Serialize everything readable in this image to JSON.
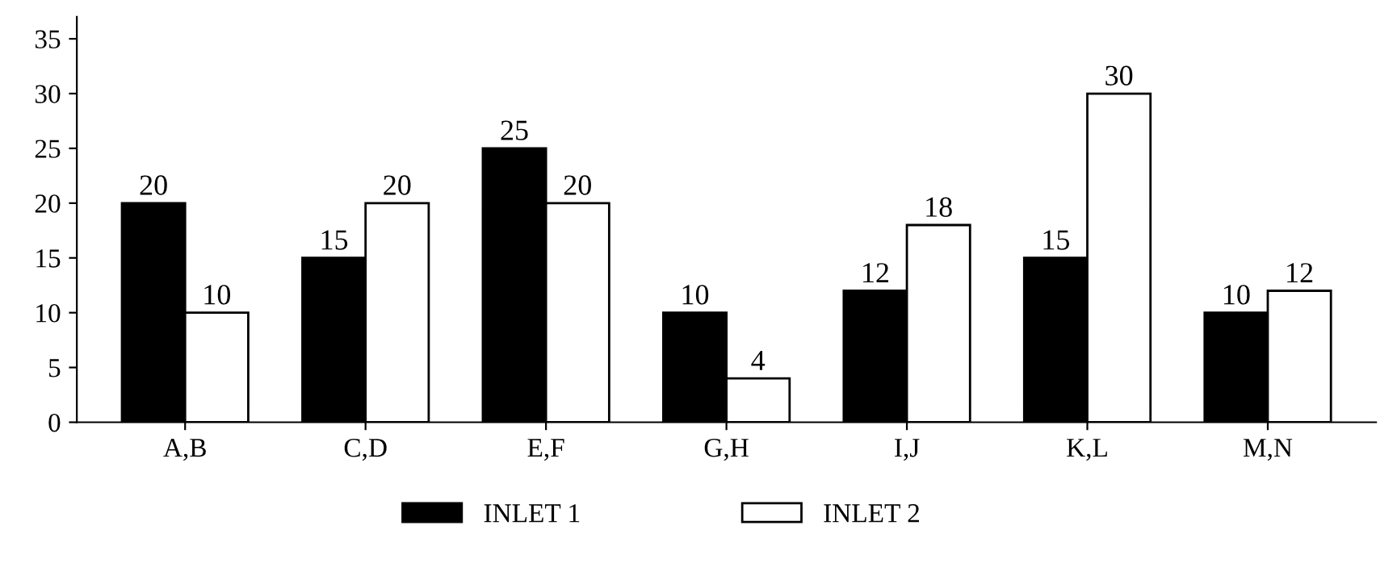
{
  "chart_data": {
    "type": "bar",
    "categories": [
      "A,B",
      "C,D",
      "E,F",
      "G,H",
      "I,J",
      "K,L",
      "M,N"
    ],
    "series": [
      {
        "name": "INLET 1",
        "color": "#000000",
        "values": [
          20,
          15,
          25,
          10,
          12,
          15,
          10
        ]
      },
      {
        "name": "INLET 2",
        "color": "#ffffff",
        "values": [
          10,
          20,
          20,
          4,
          18,
          30,
          12
        ]
      }
    ],
    "ylim": [
      0,
      37
    ],
    "yticks": [
      0,
      5,
      10,
      15,
      20,
      25,
      30,
      35
    ],
    "data_labels": true,
    "legend": "bottom",
    "grid": false
  }
}
